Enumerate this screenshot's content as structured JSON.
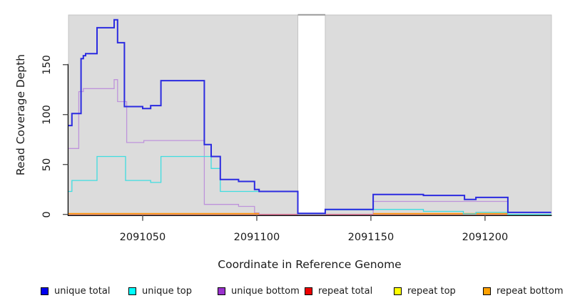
{
  "chart_data": {
    "type": "line",
    "subtype": "step-after",
    "title": "",
    "xlabel": "Coordinate in Reference Genome",
    "ylabel": "Read Coverage Depth",
    "grid": false,
    "legend_position": "bottom",
    "plot_bg_color": "#dcdcdc",
    "page_bg_color": "#ffffff",
    "xlim": [
      2091017.5,
      2091229.1
    ],
    "ylim": [
      0,
      200.5
    ],
    "x_ticks": [
      2091050,
      2091100,
      2091150,
      2091200
    ],
    "y_ticks": [
      0,
      50,
      100,
      150
    ],
    "gap_region": {
      "x_start": 2091118,
      "x_end": 2091130
    },
    "series": [
      {
        "name": "repeat top",
        "color": "#ffee00",
        "width": 1.2,
        "segments": [
          [
            [
              2091017.5,
              0
            ],
            [
              2091229,
              0
            ]
          ]
        ]
      },
      {
        "name": "unique bottom",
        "color": "#be93db",
        "width": 1.3,
        "segments": [
          [
            [
              2091017.5,
              66
            ],
            [
              2091022,
              123
            ],
            [
              2091024,
              126
            ],
            [
              2091037.5,
              135
            ],
            [
              2091039,
              113
            ],
            [
              2091043,
              72
            ],
            [
              2091050.5,
              74
            ],
            [
              2091077,
              10
            ],
            [
              2091092,
              8
            ],
            [
              2091099,
              1.5
            ],
            [
              2091101,
              0
            ],
            [
              2091151,
              13
            ],
            [
              2091210,
              0
            ],
            [
              2091229,
              0
            ]
          ]
        ]
      },
      {
        "name": "repeat total",
        "color": "#d96b8f",
        "width": 1.3,
        "segments": [
          [
            [
              2091017.5,
              0
            ],
            [
              2091229,
              0
            ]
          ]
        ]
      },
      {
        "name": "repeat bottom",
        "color": "#ff9912",
        "width": 1.8,
        "segments": [
          [
            [
              2091017.5,
              0.7
            ],
            [
              2091101,
              0.7
            ]
          ],
          [
            [
              2091151,
              0.7
            ],
            [
              2091210,
              0.7
            ]
          ]
        ]
      },
      {
        "name": "unique top",
        "color": "#3fdde0",
        "width": 1.3,
        "segments": [
          [
            [
              2091017.5,
              23
            ],
            [
              2091019,
              34
            ],
            [
              2091030,
              58
            ],
            [
              2091042.5,
              34
            ],
            [
              2091053.5,
              32
            ],
            [
              2091058,
              58
            ],
            [
              2091080,
              46
            ],
            [
              2091084,
              23
            ],
            [
              2091118,
              0.5
            ],
            [
              2091130,
              4.5
            ],
            [
              2091151,
              5
            ],
            [
              2091173,
              3
            ],
            [
              2091190.5,
              0.5
            ],
            [
              2091196,
              2
            ],
            [
              2091210,
              0
            ],
            [
              2091229,
              0
            ]
          ]
        ]
      },
      {
        "name": "unique total",
        "color": "#2b2be0",
        "width": 2,
        "segments": [
          [
            [
              2091017.5,
              89
            ],
            [
              2091019,
              101
            ],
            [
              2091023,
              156
            ],
            [
              2091024,
              159
            ],
            [
              2091025,
              161
            ],
            [
              2091030,
              187
            ],
            [
              2091037.5,
              195
            ],
            [
              2091039,
              172
            ],
            [
              2091042,
              108
            ],
            [
              2091050,
              106
            ],
            [
              2091053.5,
              109
            ],
            [
              2091058,
              134
            ],
            [
              2091077,
              70
            ],
            [
              2091080,
              58
            ],
            [
              2091084,
              35
            ],
            [
              2091092,
              33
            ],
            [
              2091099,
              25
            ],
            [
              2091101,
              23
            ],
            [
              2091118,
              1
            ],
            [
              2091130,
              5
            ],
            [
              2091151,
              20
            ],
            [
              2091173,
              19
            ],
            [
              2091191,
              15
            ],
            [
              2091196,
              17
            ],
            [
              2091210,
              2
            ],
            [
              2091229,
              2
            ]
          ]
        ]
      }
    ]
  },
  "legend": {
    "items": [
      {
        "label": "unique total",
        "color": "#0000ee"
      },
      {
        "label": "unique top",
        "color": "#00ffff"
      },
      {
        "label": "unique bottom",
        "color": "#9a32cd"
      },
      {
        "label": "repeat total",
        "color": "#ee0000"
      },
      {
        "label": "repeat top",
        "color": "#ffff00"
      },
      {
        "label": "repeat bottom",
        "color": "#ffa100"
      }
    ]
  }
}
